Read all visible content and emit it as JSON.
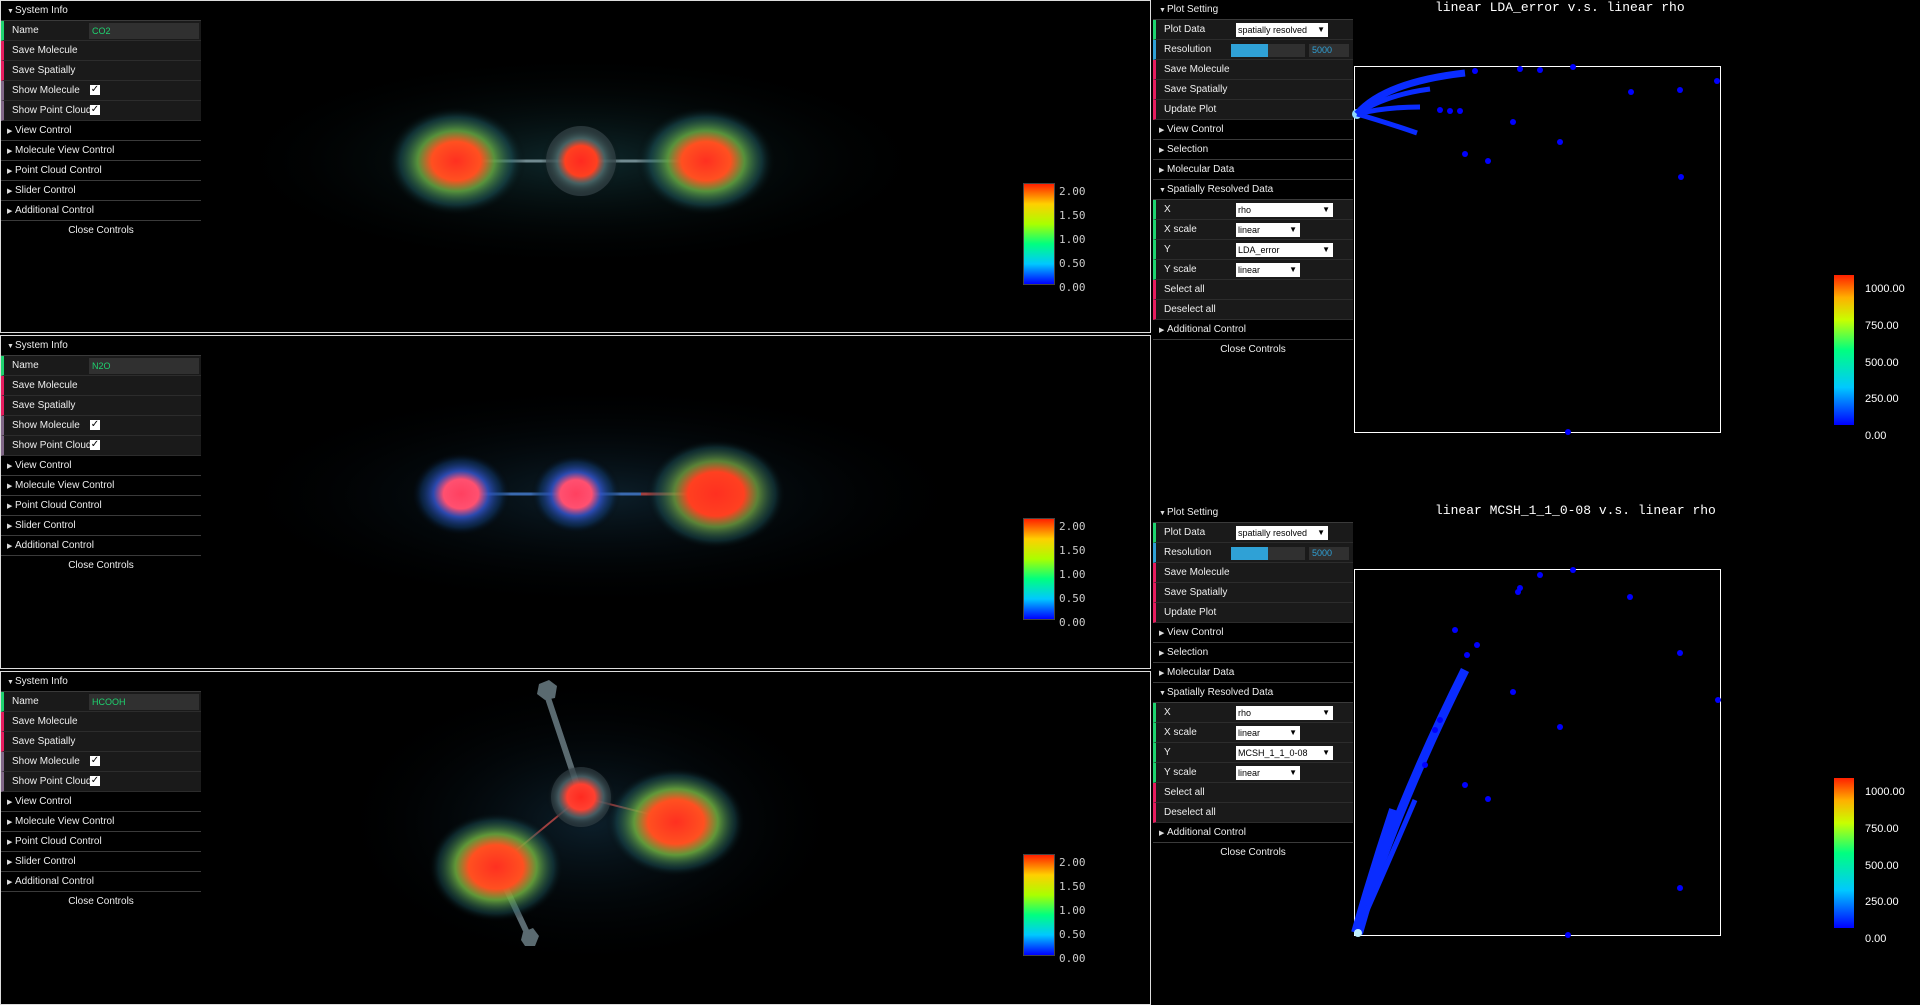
{
  "molecules": [
    {
      "system_info_label": "System Info",
      "name_label": "Name",
      "name_value": "CO2",
      "save_molecule": "Save Molecule",
      "save_spatially": "Save Spatially",
      "show_molecule": "Show Molecule",
      "show_point_cloud": "Show Point Cloud",
      "show_molecule_checked": true,
      "show_point_cloud_checked": true,
      "folders": [
        "View Control",
        "Molecule View Control",
        "Point Cloud Control",
        "Slider Control",
        "Additional Control"
      ],
      "close": "Close Controls",
      "colorbar_ticks": [
        "2.00",
        "1.50",
        "1.00",
        "0.50",
        "0.00"
      ]
    },
    {
      "system_info_label": "System Info",
      "name_label": "Name",
      "name_value": "N2O",
      "save_molecule": "Save Molecule",
      "save_spatially": "Save Spatially",
      "show_molecule": "Show Molecule",
      "show_point_cloud": "Show Point Cloud",
      "show_molecule_checked": true,
      "show_point_cloud_checked": true,
      "folders": [
        "View Control",
        "Molecule View Control",
        "Point Cloud Control",
        "Slider Control",
        "Additional Control"
      ],
      "close": "Close Controls",
      "colorbar_ticks": [
        "2.00",
        "1.50",
        "1.00",
        "0.50",
        "0.00"
      ]
    },
    {
      "system_info_label": "System Info",
      "name_label": "Name",
      "name_value": "HCOOH",
      "save_molecule": "Save Molecule",
      "save_spatially": "Save Spatially",
      "show_molecule": "Show Molecule",
      "show_point_cloud": "Show Point Cloud",
      "show_molecule_checked": true,
      "show_point_cloud_checked": true,
      "folders": [
        "View Control",
        "Molecule View Control",
        "Point Cloud Control",
        "Slider Control",
        "Additional Control"
      ],
      "close": "Close Controls",
      "colorbar_ticks": [
        "2.00",
        "1.50",
        "1.00",
        "0.50",
        "0.00"
      ]
    }
  ],
  "plots": [
    {
      "plot_setting_label": "Plot Setting",
      "plot_data_label": "Plot Data",
      "plot_data_value": "spatially resolved",
      "resolution_label": "Resolution",
      "resolution_value": "5000",
      "resolution_fraction": 0.5,
      "save_molecule": "Save Molecule",
      "save_spatially": "Save Spatially",
      "update_plot": "Update Plot",
      "folders_top": [
        "View Control",
        "Selection",
        "Molecular Data"
      ],
      "srd_label": "Spatially Resolved Data",
      "x_label": "X",
      "x_value": "rho",
      "xscale_label": "X scale",
      "xscale_value": "linear",
      "y_label": "Y",
      "y_value": "LDA_error",
      "yscale_label": "Y scale",
      "yscale_value": "linear",
      "select_all": "Select all",
      "deselect_all": "Deselect all",
      "additional_control": "Additional Control",
      "close": "Close Controls",
      "title": "linear LDA_error v.s. linear rho",
      "scale_ticks": [
        "1000.00",
        "750.00",
        "500.00",
        "250.00",
        "0.00"
      ]
    },
    {
      "plot_setting_label": "Plot Setting",
      "plot_data_label": "Plot Data",
      "plot_data_value": "spatially resolved",
      "resolution_label": "Resolution",
      "resolution_value": "5000",
      "resolution_fraction": 0.5,
      "save_molecule": "Save Molecule",
      "save_spatially": "Save Spatially",
      "update_plot": "Update Plot",
      "folders_top": [
        "View Control",
        "Selection",
        "Molecular Data"
      ],
      "srd_label": "Spatially Resolved Data",
      "x_label": "X",
      "x_value": "rho",
      "xscale_label": "X scale",
      "xscale_value": "linear",
      "y_label": "Y",
      "y_value": "MCSH_1_1_0-08",
      "yscale_label": "Y scale",
      "yscale_value": "linear",
      "select_all": "Select all",
      "deselect_all": "Deselect all",
      "additional_control": "Additional Control",
      "close": "Close Controls",
      "title": "linear MCSH_1_1_0-08 v.s. linear rho",
      "scale_ticks": [
        "1000.00",
        "750.00",
        "500.00",
        "250.00",
        "0.00"
      ]
    }
  ],
  "colors": {
    "string_accent": "#1ed36f",
    "function_accent": "#e61d5f",
    "boolean_accent": "#806787",
    "number_accent": "#2fa1d6",
    "point_color": "#0000ff"
  }
}
